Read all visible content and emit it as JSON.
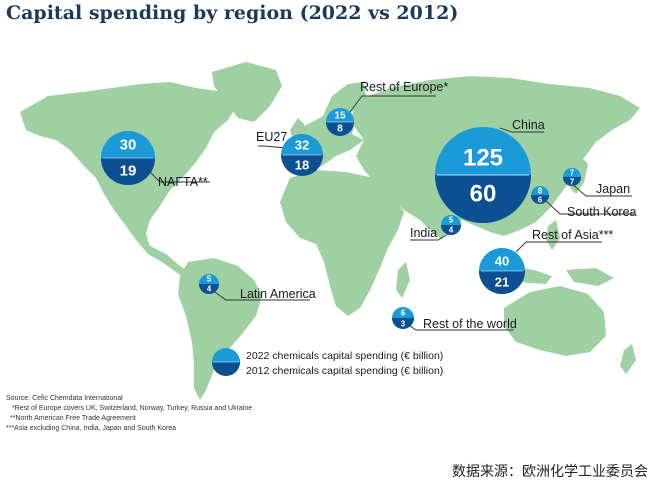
{
  "title": "Capital spending by region (2022 vs 2012)",
  "colors": {
    "land": "#9fd0a2",
    "sea": "#ffffff",
    "circle_2022": "#1a9ad6",
    "circle_2012": "#0d4f93",
    "leader": "#333333"
  },
  "regions": [
    {
      "id": "nafta",
      "label": "NAFTA**",
      "v2022": "30",
      "v2012": "19"
    },
    {
      "id": "eu27",
      "label": "EU27",
      "v2022": "32",
      "v2012": "18"
    },
    {
      "id": "rest-of-europe",
      "label": "Rest of Europe*",
      "v2022": "15",
      "v2012": "8"
    },
    {
      "id": "china",
      "label": "China",
      "v2022": "125",
      "v2012": "60"
    },
    {
      "id": "japan",
      "label": "Japan",
      "v2022": "7",
      "v2012": "7"
    },
    {
      "id": "south-korea",
      "label": "South Korea",
      "v2022": "8",
      "v2012": "6"
    },
    {
      "id": "india",
      "label": "India",
      "v2022": "5",
      "v2012": "4"
    },
    {
      "id": "rest-of-asia",
      "label": "Rest of Asia***",
      "v2022": "40",
      "v2012": "21"
    },
    {
      "id": "latin-america",
      "label": "Latin America",
      "v2022": "5",
      "v2012": "4"
    },
    {
      "id": "rest-of-world",
      "label": "Rest of the world",
      "v2022": "6",
      "v2012": "3"
    }
  ],
  "legend": {
    "item_2022": "2022 chemicals capital spending (€ billion)",
    "item_2012": "2012 chemicals capital spending (€ billion)"
  },
  "notes": {
    "source": "Source: Cefic Chemdata International",
    "note1": "*Rest of Europe covers UK, Switzerland, Norway, Turkey, Russia and Ukraine",
    "note2": "**North American Free Trade Agreement",
    "note3": "***Asia excluding China, India, Japan and South Korea"
  },
  "footer": "数据来源：欧洲化学工业委员会"
}
